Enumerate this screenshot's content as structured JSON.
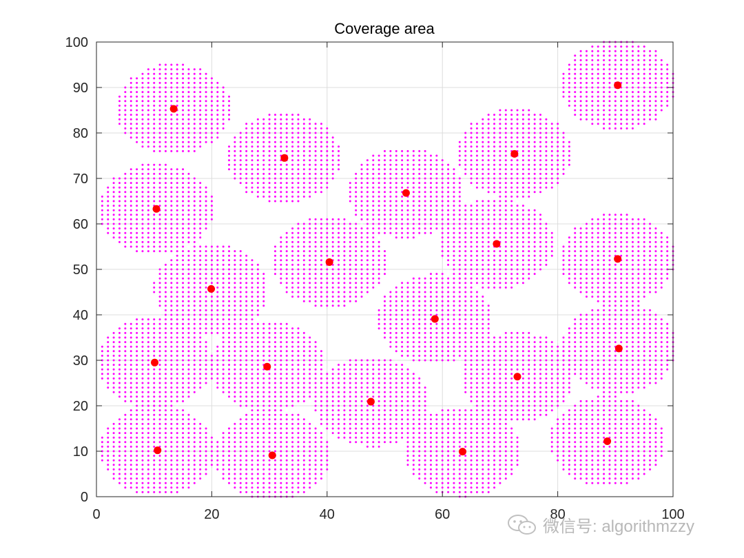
{
  "chart_data": {
    "type": "scatter",
    "title": "Coverage area",
    "xlabel": "",
    "ylabel": "",
    "xlim": [
      0,
      100
    ],
    "ylim": [
      0,
      100
    ],
    "xticks": [
      0,
      20,
      40,
      60,
      80,
      100
    ],
    "yticks": [
      0,
      10,
      20,
      30,
      40,
      50,
      60,
      70,
      80,
      90,
      100
    ],
    "grid": true,
    "coverage_radius": 10,
    "coverage_color": "#ff00ff",
    "node_color": "#ff0000",
    "nodes": [
      {
        "x": 13.4,
        "y": 85.3
      },
      {
        "x": 32.6,
        "y": 74.5
      },
      {
        "x": 10.4,
        "y": 63.3
      },
      {
        "x": 19.9,
        "y": 45.7
      },
      {
        "x": 40.4,
        "y": 51.6
      },
      {
        "x": 53.7,
        "y": 66.8
      },
      {
        "x": 72.5,
        "y": 75.4
      },
      {
        "x": 69.4,
        "y": 55.6
      },
      {
        "x": 90.4,
        "y": 90.5
      },
      {
        "x": 90.4,
        "y": 52.3
      },
      {
        "x": 58.7,
        "y": 39.1
      },
      {
        "x": 10.1,
        "y": 29.5
      },
      {
        "x": 29.6,
        "y": 28.6
      },
      {
        "x": 47.6,
        "y": 20.9
      },
      {
        "x": 73.0,
        "y": 26.4
      },
      {
        "x": 90.6,
        "y": 32.6
      },
      {
        "x": 10.6,
        "y": 10.2
      },
      {
        "x": 30.5,
        "y": 9.1
      },
      {
        "x": 63.5,
        "y": 9.9
      },
      {
        "x": 88.6,
        "y": 12.2
      }
    ]
  },
  "watermark": {
    "text": "微信号: algorithmzzy",
    "icon": "wechat-icon"
  }
}
